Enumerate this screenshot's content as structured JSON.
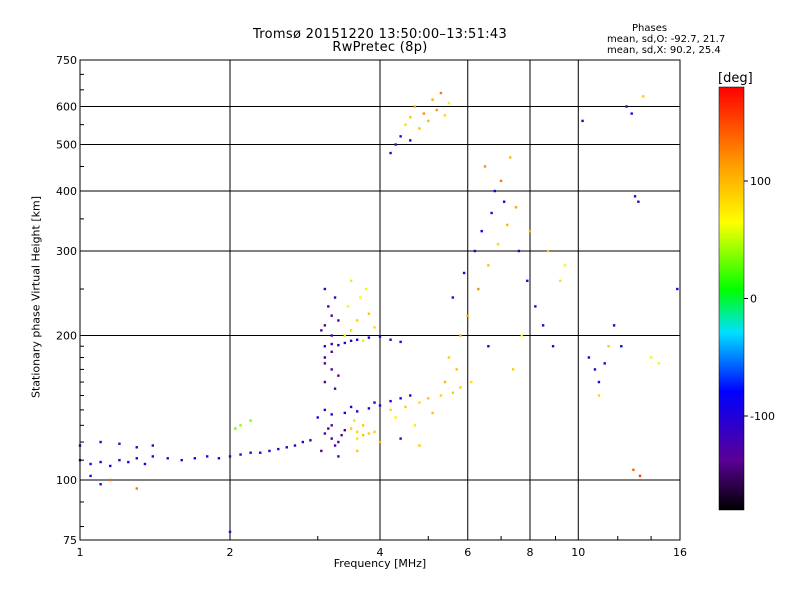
{
  "title": {
    "line1": "Tromsø 20151220 13:50:00–13:51:43",
    "line2": "RwPretec (8p)"
  },
  "stats": {
    "header": "Phases",
    "o_line": "mean, sd,O: -92.7, 21.7",
    "x_line": "mean, sd,X:  90.2, 25.4"
  },
  "colorbar": {
    "title": "[deg]",
    "ticks": [
      {
        "label": "100",
        "value": 100
      },
      {
        "label": "0",
        "value": 0
      },
      {
        "label": "-100",
        "value": -100
      }
    ],
    "range": [
      -180,
      180
    ],
    "colormap": "rainbow (black-purple-blue-cyan-green-yellow-orange-red)"
  },
  "chart_data": {
    "type": "scatter",
    "title": "Tromsø 20151220 13:50:00–13:51:43 RwPretec (8p)",
    "xlabel": "Frequency [MHz]",
    "ylabel": "Stationary phase Virtual Height [km]",
    "xscale": "log",
    "yscale": "log",
    "xlim": [
      1,
      16
    ],
    "ylim": [
      75,
      750
    ],
    "xticks": [
      {
        "label": "1",
        "value": 1
      },
      {
        "label": "2",
        "value": 2
      },
      {
        "label": "4",
        "value": 4
      },
      {
        "label": "6",
        "value": 6
      },
      {
        "label": "8",
        "value": 8
      },
      {
        "label": "10",
        "value": 10
      },
      {
        "label": "16",
        "value": 16
      }
    ],
    "yticks": [
      {
        "label": "750",
        "value": 750
      },
      {
        "label": "600",
        "value": 600
      },
      {
        "label": "500",
        "value": 500
      },
      {
        "label": "400",
        "value": 400
      },
      {
        "label": "300",
        "value": 300
      },
      {
        "label": "200",
        "value": 200
      },
      {
        "label": "100",
        "value": 100
      },
      {
        "label": "75",
        "value": 75
      }
    ],
    "grid": true,
    "color_by": "phase [deg]",
    "series": [
      {
        "points": [
          [
            1.0,
            110,
            -105
          ],
          [
            1.05,
            108,
            -100
          ],
          [
            1.1,
            109,
            -110
          ],
          [
            1.15,
            107,
            -95
          ],
          [
            1.2,
            110,
            -108
          ],
          [
            1.25,
            109,
            -100
          ],
          [
            1.3,
            111,
            -112
          ],
          [
            1.35,
            108,
            -98
          ],
          [
            1.4,
            112,
            -105
          ],
          [
            1.5,
            111,
            -110
          ],
          [
            1.6,
            110,
            -100
          ],
          [
            1.7,
            111,
            -95
          ],
          [
            1.8,
            112,
            -108
          ],
          [
            1.9,
            111,
            -100
          ],
          [
            2.0,
            112,
            -105
          ],
          [
            2.1,
            113,
            -110
          ],
          [
            2.2,
            114,
            -100
          ],
          [
            2.3,
            114,
            -95
          ],
          [
            2.4,
            115,
            -108
          ],
          [
            2.5,
            116,
            -100
          ],
          [
            2.6,
            117,
            -105
          ],
          [
            2.7,
            118,
            -110
          ],
          [
            2.8,
            120,
            -100
          ],
          [
            2.9,
            121,
            -95
          ],
          [
            1.0,
            118,
            -120
          ],
          [
            1.1,
            120,
            -115
          ],
          [
            1.2,
            119,
            -118
          ],
          [
            1.3,
            117,
            -112
          ],
          [
            1.4,
            118,
            -120
          ],
          [
            1.05,
            102,
            -105
          ],
          [
            1.1,
            98,
            -110
          ]
        ]
      },
      {
        "points": [
          [
            3.1,
            125,
            -130
          ],
          [
            3.2,
            122,
            -140
          ],
          [
            3.3,
            120,
            -135
          ],
          [
            3.15,
            128,
            -145
          ],
          [
            3.25,
            118,
            -125
          ],
          [
            3.35,
            124,
            -138
          ],
          [
            3.05,
            115,
            -132
          ],
          [
            3.4,
            127,
            -142
          ],
          [
            3.3,
            112,
            -128
          ],
          [
            3.2,
            130,
            -136
          ]
        ]
      },
      {
        "points": [
          [
            3.0,
            135,
            -100
          ],
          [
            3.2,
            137,
            -105
          ],
          [
            3.4,
            138,
            -100
          ],
          [
            3.6,
            139,
            -95
          ],
          [
            3.8,
            141,
            -100
          ],
          [
            4.0,
            143,
            -105
          ],
          [
            4.2,
            146,
            -100
          ],
          [
            4.4,
            148,
            -95
          ],
          [
            4.6,
            150,
            -100
          ],
          [
            3.1,
            140,
            -110
          ],
          [
            3.5,
            142,
            -100
          ],
          [
            3.9,
            145,
            -95
          ]
        ]
      },
      {
        "points": [
          [
            3.1,
            190,
            -110
          ],
          [
            3.2,
            192,
            -105
          ],
          [
            3.3,
            191,
            -100
          ],
          [
            3.4,
            193,
            -110
          ],
          [
            3.5,
            195,
            -105
          ],
          [
            3.6,
            196,
            -100
          ],
          [
            3.8,
            198,
            -95
          ],
          [
            4.0,
            199,
            -105
          ],
          [
            4.2,
            196,
            -100
          ],
          [
            4.4,
            194,
            -108
          ]
        ]
      },
      {
        "points": [
          [
            3.1,
            160,
            -140
          ],
          [
            3.2,
            170,
            -135
          ],
          [
            3.1,
            180,
            -145
          ],
          [
            3.2,
            200,
            -130
          ],
          [
            3.1,
            210,
            -138
          ],
          [
            3.2,
            220,
            -128
          ],
          [
            3.15,
            230,
            -120
          ],
          [
            3.25,
            240,
            -115
          ],
          [
            3.1,
            250,
            -110
          ],
          [
            3.3,
            215,
            -125
          ],
          [
            3.05,
            205,
            -130
          ],
          [
            3.2,
            185,
            -140
          ],
          [
            3.3,
            165,
            -135
          ],
          [
            3.1,
            175,
            -130
          ],
          [
            3.25,
            155,
            -125
          ]
        ]
      },
      {
        "points": [
          [
            3.5,
            128,
            90
          ],
          [
            3.6,
            126,
            85
          ],
          [
            3.7,
            124,
            95
          ],
          [
            3.8,
            125,
            88
          ],
          [
            3.6,
            122,
            80
          ],
          [
            3.7,
            130,
            92
          ],
          [
            3.9,
            126,
            86
          ],
          [
            3.55,
            133,
            78
          ]
        ]
      },
      {
        "points": [
          [
            3.4,
            200,
            80
          ],
          [
            3.5,
            205,
            85
          ],
          [
            3.6,
            215,
            90
          ],
          [
            3.7,
            195,
            75
          ],
          [
            3.8,
            222,
            95
          ],
          [
            3.9,
            208,
            82
          ],
          [
            3.45,
            230,
            70
          ],
          [
            3.65,
            240,
            65
          ],
          [
            3.75,
            250,
            60
          ],
          [
            3.5,
            260,
            55
          ]
        ]
      },
      {
        "points": [
          [
            4.2,
            140,
            85
          ],
          [
            4.5,
            142,
            90
          ],
          [
            4.8,
            145,
            80
          ],
          [
            5.0,
            148,
            95
          ],
          [
            5.3,
            150,
            85
          ],
          [
            5.6,
            152,
            90
          ],
          [
            5.8,
            156,
            88
          ],
          [
            4.3,
            135,
            70
          ],
          [
            4.7,
            130,
            75
          ],
          [
            5.1,
            138,
            95
          ],
          [
            5.4,
            160,
            100
          ]
        ]
      },
      {
        "points": [
          [
            4.5,
            550,
            80
          ],
          [
            4.6,
            570,
            90
          ],
          [
            4.7,
            600,
            110
          ],
          [
            4.8,
            540,
            95
          ],
          [
            4.9,
            580,
            120
          ],
          [
            5.0,
            560,
            100
          ],
          [
            5.1,
            620,
            105
          ],
          [
            5.2,
            590,
            115
          ],
          [
            4.4,
            520,
            -110
          ],
          [
            4.3,
            500,
            -120
          ],
          [
            4.2,
            480,
            -105
          ],
          [
            4.6,
            510,
            -100
          ],
          [
            5.3,
            640,
            130
          ],
          [
            5.5,
            610,
            60
          ],
          [
            5.4,
            575,
            85
          ]
        ]
      },
      {
        "points": [
          [
            5.5,
            180,
            90
          ],
          [
            5.8,
            200,
            100
          ],
          [
            6.0,
            220,
            110
          ],
          [
            6.3,
            250,
            120
          ],
          [
            6.6,
            280,
            95
          ],
          [
            6.9,
            310,
            85
          ],
          [
            7.2,
            340,
            100
          ],
          [
            7.5,
            370,
            110
          ],
          [
            7.0,
            420,
            130
          ],
          [
            6.8,
            400,
            -100
          ],
          [
            6.5,
            450,
            120
          ],
          [
            7.3,
            470,
            100
          ],
          [
            5.6,
            240,
            -110
          ],
          [
            5.9,
            270,
            -105
          ],
          [
            6.2,
            300,
            -100
          ],
          [
            6.4,
            330,
            -95
          ],
          [
            6.7,
            360,
            -110
          ],
          [
            7.1,
            380,
            -100
          ],
          [
            7.6,
            300,
            -105
          ],
          [
            7.9,
            260,
            -100
          ],
          [
            8.2,
            230,
            -110
          ],
          [
            8.5,
            210,
            -95
          ],
          [
            8.9,
            190,
            -100
          ],
          [
            9.2,
            260,
            80
          ],
          [
            9.4,
            280,
            70
          ],
          [
            8.7,
            300,
            90
          ],
          [
            8.0,
            330,
            100
          ],
          [
            7.7,
            200,
            60
          ],
          [
            7.4,
            170,
            90
          ],
          [
            6.1,
            160,
            80
          ],
          [
            5.7,
            170,
            95
          ],
          [
            6.6,
            190,
            -100
          ]
        ]
      },
      {
        "points": [
          [
            10.5,
            180,
            -100
          ],
          [
            10.8,
            170,
            -110
          ],
          [
            11.0,
            160,
            -105
          ],
          [
            11.3,
            175,
            -100
          ],
          [
            11.0,
            150,
            85
          ],
          [
            11.5,
            190,
            90
          ],
          [
            12.5,
            600,
            -110
          ],
          [
            12.8,
            580,
            -100
          ],
          [
            13.0,
            390,
            -120
          ],
          [
            13.2,
            380,
            -110
          ],
          [
            14.0,
            180,
            60
          ],
          [
            14.5,
            175,
            70
          ],
          [
            15.8,
            250,
            -100
          ],
          [
            12.9,
            105,
            140
          ],
          [
            13.3,
            102,
            150
          ],
          [
            13.5,
            630,
            90
          ],
          [
            10.2,
            560,
            -100
          ],
          [
            11.8,
            210,
            -105
          ],
          [
            12.2,
            190,
            -95
          ]
        ]
      },
      {
        "points": [
          [
            2.1,
            130,
            40
          ],
          [
            2.2,
            133,
            35
          ],
          [
            2.05,
            128,
            30
          ],
          [
            2.0,
            78,
            -110
          ],
          [
            1.3,
            96,
            130
          ],
          [
            1.15,
            100,
            140
          ],
          [
            3.6,
            115,
            95
          ],
          [
            4.0,
            120,
            100
          ],
          [
            4.4,
            122,
            -105
          ],
          [
            4.8,
            118,
            90
          ]
        ]
      }
    ]
  }
}
